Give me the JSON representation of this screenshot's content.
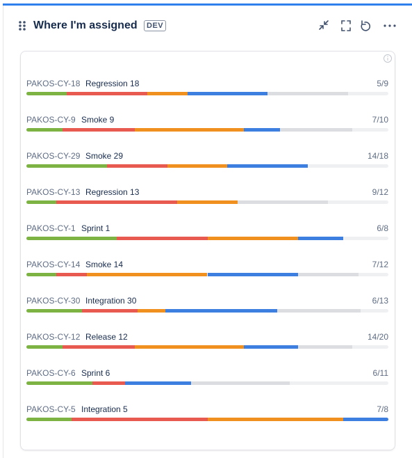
{
  "header": {
    "title": "Where I'm assigned",
    "badge": "DEV"
  },
  "segment_colors": [
    "#7cb342",
    "#e8594f",
    "#f0901e",
    "#3d7fe0",
    "#dcdde1"
  ],
  "items": [
    {
      "key": "PAKOS-CY-18",
      "name": "Regression 18",
      "progress": "5/9",
      "total": 9,
      "segments": [
        1,
        2,
        1,
        2,
        2
      ]
    },
    {
      "key": "PAKOS-CY-9",
      "name": "Smoke 9",
      "progress": "7/10",
      "total": 10,
      "segments": [
        1,
        2,
        3,
        1,
        2
      ]
    },
    {
      "key": "PAKOS-CY-29",
      "name": "Smoke 29",
      "progress": "14/18",
      "total": 18,
      "segments": [
        4,
        3,
        3,
        4,
        0
      ]
    },
    {
      "key": "PAKOS-CY-13",
      "name": "Regression 13",
      "progress": "9/12",
      "total": 12,
      "segments": [
        1,
        4,
        2,
        0,
        3
      ]
    },
    {
      "key": "PAKOS-CY-1",
      "name": "Sprint 1",
      "progress": "6/8",
      "total": 8,
      "segments": [
        2,
        2,
        2,
        1,
        0
      ]
    },
    {
      "key": "PAKOS-CY-14",
      "name": "Smoke 14",
      "progress": "7/12",
      "total": 12,
      "segments": [
        1,
        1,
        4,
        3,
        2
      ]
    },
    {
      "key": "PAKOS-CY-30",
      "name": "Integration 30",
      "progress": "6/13",
      "total": 13,
      "segments": [
        2,
        2,
        1,
        4,
        3
      ]
    },
    {
      "key": "PAKOS-CY-12",
      "name": "Release 12",
      "progress": "14/20",
      "total": 20,
      "segments": [
        2,
        4,
        6,
        3,
        3
      ]
    },
    {
      "key": "PAKOS-CY-6",
      "name": "Sprint 6",
      "progress": "6/11",
      "total": 11,
      "segments": [
        2,
        1,
        0,
        2,
        3
      ]
    },
    {
      "key": "PAKOS-CY-5",
      "name": "Integration 5",
      "progress": "7/8",
      "total": 8,
      "segments": [
        1,
        3,
        3,
        1,
        0
      ]
    }
  ]
}
